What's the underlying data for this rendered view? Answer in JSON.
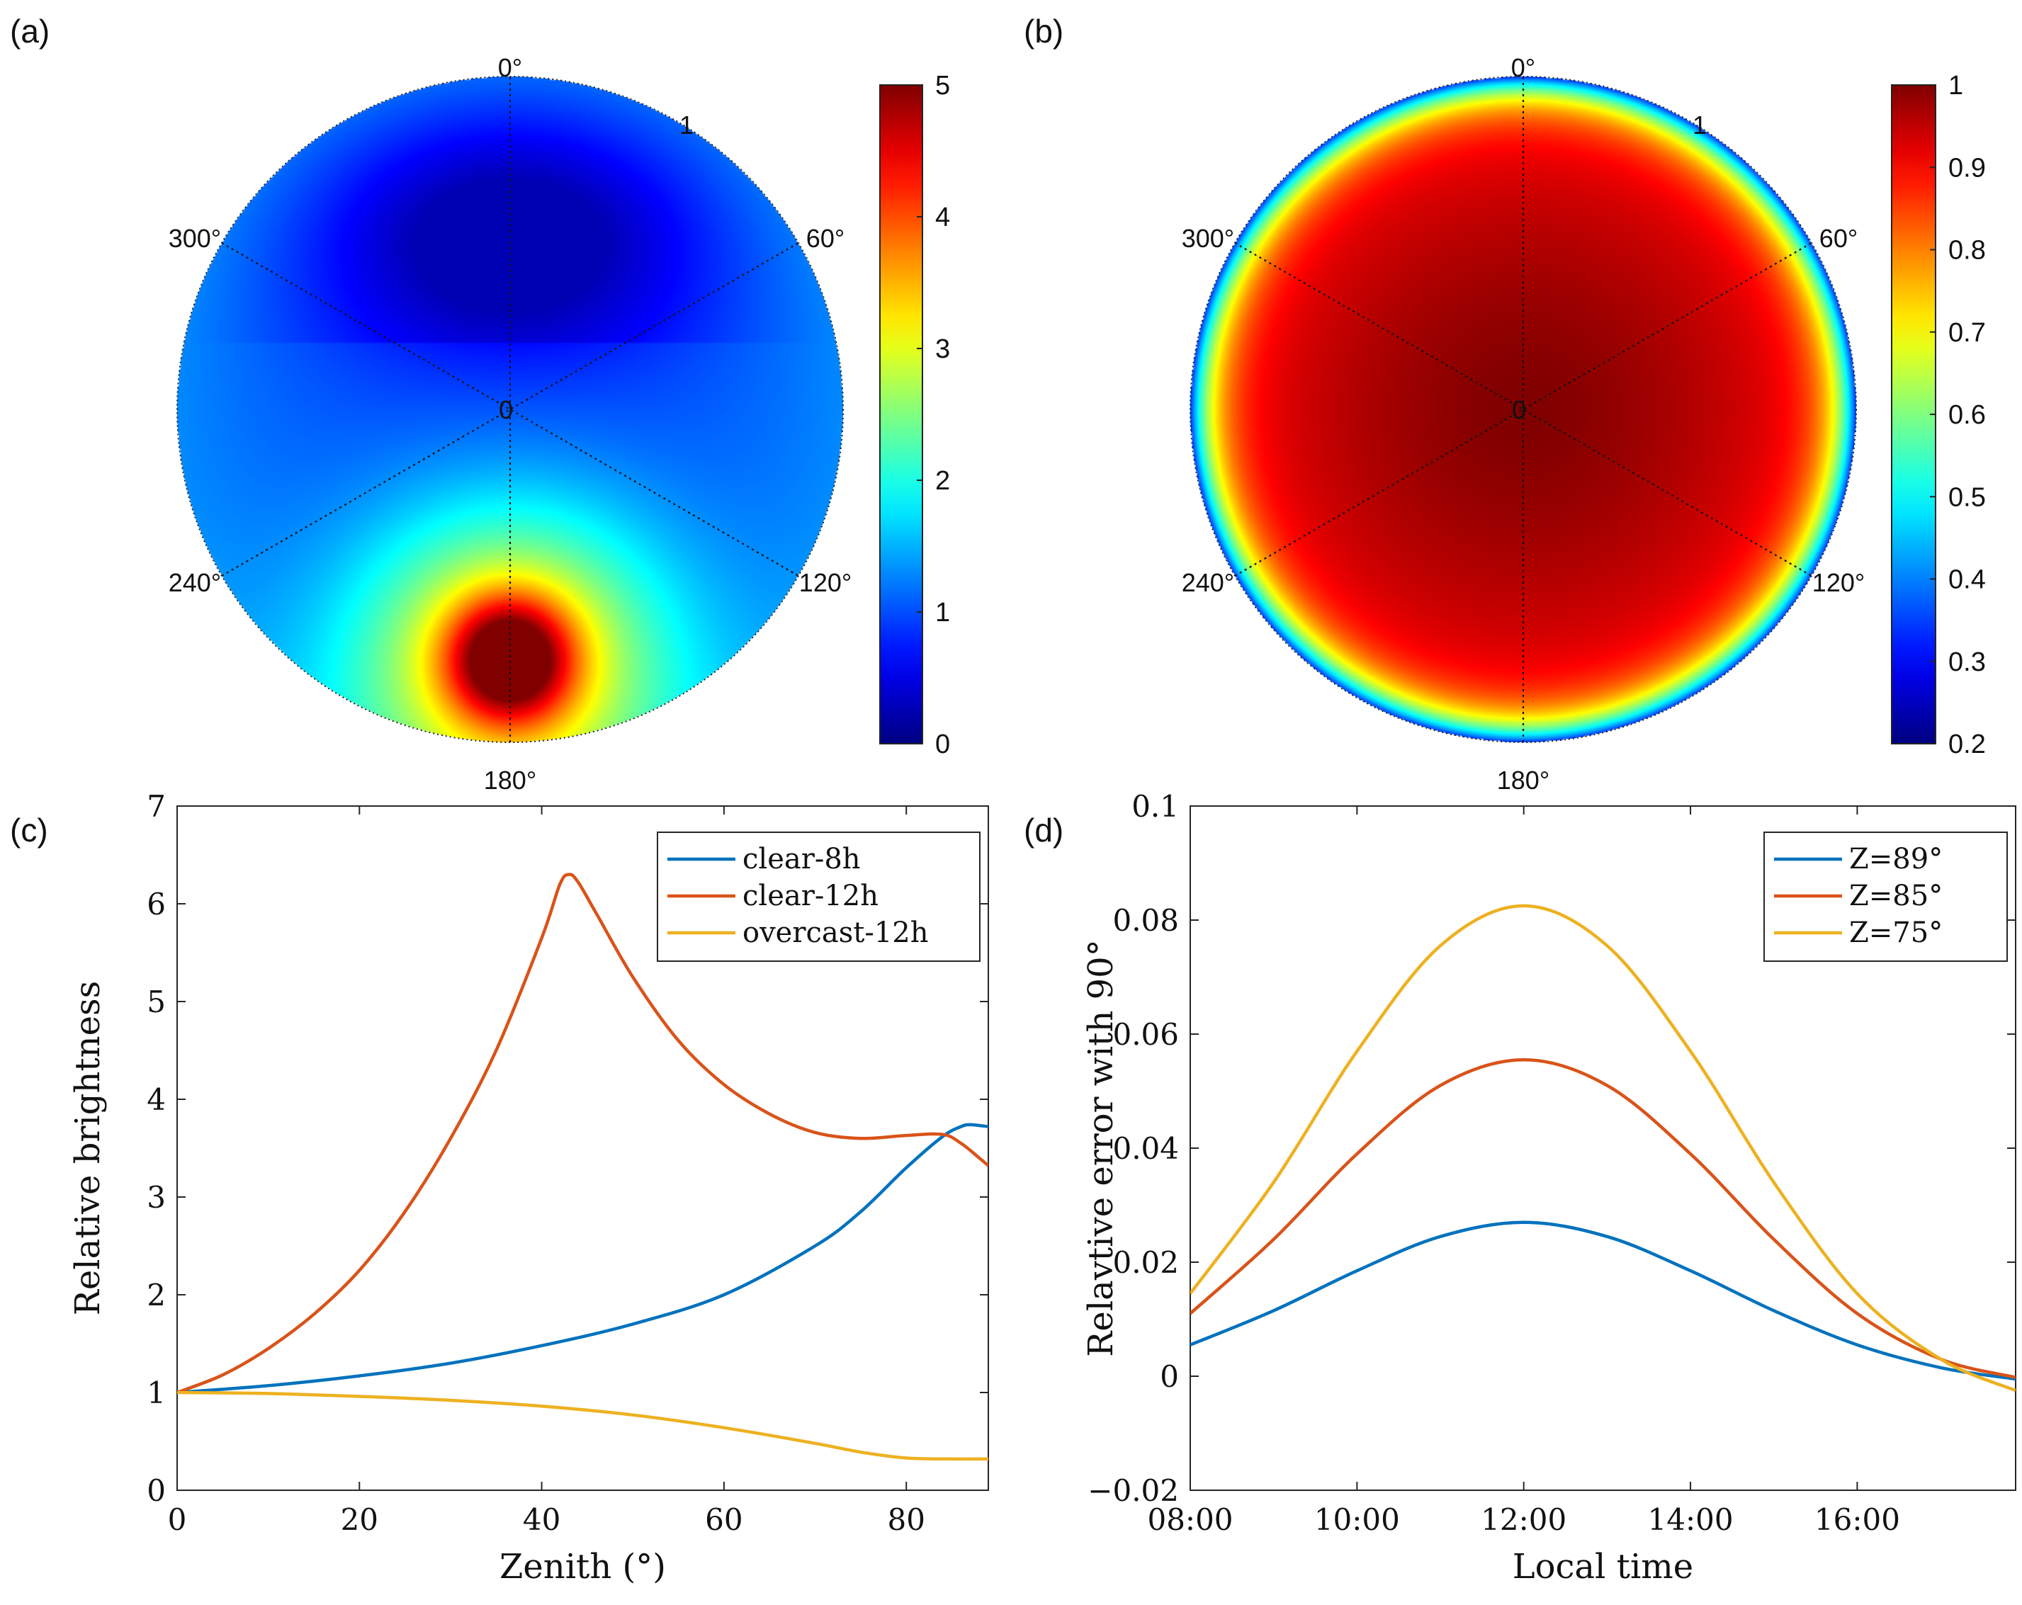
{
  "chart_data": [
    {
      "id": "a",
      "panel_label": "(a)",
      "type": "heatmap",
      "projection": "polar",
      "angle_ticks": [
        "0°",
        "60°",
        "120°",
        "180°",
        "240°",
        "300°"
      ],
      "radial_ticks": [
        "0",
        "1"
      ],
      "colorbar": {
        "range": [
          0,
          5
        ],
        "ticks": [
          "0",
          "1",
          "2",
          "3",
          "4",
          "5"
        ],
        "colormap": "jet"
      },
      "features": {
        "hotspot_azimuth_deg": 180,
        "hotspot_zenith_norm": 0.75,
        "hotspot_peak": 5,
        "minimum_azimuth_deg": 0,
        "minimum_zenith_norm": 0.55,
        "minimum_value": 0.3
      }
    },
    {
      "id": "b",
      "panel_label": "(b)",
      "type": "heatmap",
      "projection": "polar",
      "angle_ticks": [
        "0°",
        "60°",
        "120°",
        "180°",
        "240°",
        "300°"
      ],
      "radial_ticks": [
        "0",
        "1"
      ],
      "colorbar": {
        "range": [
          0.2,
          1
        ],
        "ticks": [
          "0.2",
          "0.3",
          "0.4",
          "0.5",
          "0.6",
          "0.7",
          "0.8",
          "0.9",
          "1"
        ],
        "colormap": "jet"
      },
      "features": {
        "center_value": 1.0,
        "edge_value": 0.2,
        "symmetry": "radial"
      }
    },
    {
      "id": "c",
      "panel_label": "(c)",
      "type": "line",
      "xlabel": "Zenith (°)",
      "ylabel": "Relative brightness",
      "xlim": [
        0,
        89
      ],
      "ylim": [
        0,
        7
      ],
      "xticks": [
        "0",
        "20",
        "40",
        "60",
        "80"
      ],
      "yticks": [
        "0",
        "1",
        "2",
        "3",
        "4",
        "5",
        "6",
        "7"
      ],
      "legend_position": "top-right",
      "series": [
        {
          "name": "clear-8h",
          "color": "#0072BD",
          "x": [
            0,
            10,
            20,
            30,
            40,
            50,
            60,
            70,
            75,
            80,
            84,
            86,
            87,
            89
          ],
          "y": [
            1.0,
            1.07,
            1.17,
            1.3,
            1.48,
            1.7,
            2.0,
            2.5,
            2.85,
            3.3,
            3.62,
            3.72,
            3.74,
            3.72
          ]
        },
        {
          "name": "clear-12h",
          "color": "#D95319",
          "x": [
            0,
            5,
            10,
            15,
            20,
            25,
            30,
            35,
            40,
            42,
            43,
            44,
            46,
            50,
            55,
            60,
            65,
            70,
            75,
            80,
            84,
            86,
            88,
            89
          ],
          "y": [
            1.0,
            1.18,
            1.45,
            1.8,
            2.25,
            2.85,
            3.6,
            4.5,
            5.65,
            6.2,
            6.3,
            6.22,
            5.9,
            5.25,
            4.6,
            4.15,
            3.85,
            3.66,
            3.6,
            3.63,
            3.64,
            3.55,
            3.4,
            3.32
          ]
        },
        {
          "name": "overcast-12h",
          "color": "#EDB120",
          "x": [
            0,
            10,
            20,
            30,
            40,
            50,
            60,
            70,
            75,
            80,
            85,
            89
          ],
          "y": [
            1.0,
            0.99,
            0.96,
            0.92,
            0.86,
            0.77,
            0.64,
            0.48,
            0.39,
            0.33,
            0.32,
            0.32
          ]
        }
      ]
    },
    {
      "id": "d",
      "panel_label": "(d)",
      "type": "line",
      "xlabel": "Local time",
      "ylabel": "Relavtive error with 90°",
      "xlim": [
        "08:00",
        "17:54"
      ],
      "ylim": [
        -0.02,
        0.1
      ],
      "xticks": [
        "08:00",
        "10:00",
        "12:00",
        "14:00",
        "16:00"
      ],
      "yticks": [
        "−0.02",
        "0",
        "0.02",
        "0.04",
        "0.06",
        "0.08",
        "0.1"
      ],
      "legend_position": "top-right",
      "series": [
        {
          "name": "Z=89°",
          "color": "#0072BD",
          "x": [
            "08:00",
            "09:00",
            "10:00",
            "11:00",
            "12:00",
            "13:00",
            "14:00",
            "15:00",
            "16:00",
            "17:00",
            "17:54"
          ],
          "y": [
            0.0055,
            0.0115,
            0.0185,
            0.0245,
            0.027,
            0.0245,
            0.0185,
            0.0115,
            0.0055,
            0.0015,
            -0.0005
          ]
        },
        {
          "name": "Z=85°",
          "color": "#D95319",
          "x": [
            "08:00",
            "09:00",
            "10:00",
            "11:00",
            "12:00",
            "13:00",
            "14:00",
            "15:00",
            "16:00",
            "17:00",
            "17:54"
          ],
          "y": [
            0.011,
            0.024,
            0.039,
            0.051,
            0.0555,
            0.051,
            0.039,
            0.024,
            0.011,
            0.003,
            -0.0002
          ]
        },
        {
          "name": "Z=75°",
          "color": "#EDB120",
          "x": [
            "08:00",
            "09:00",
            "10:00",
            "11:00",
            "12:00",
            "13:00",
            "14:00",
            "15:00",
            "16:00",
            "17:00",
            "17:54"
          ],
          "y": [
            0.0145,
            0.034,
            0.057,
            0.0755,
            0.0825,
            0.0755,
            0.057,
            0.034,
            0.0145,
            0.003,
            -0.0025
          ]
        }
      ]
    }
  ]
}
